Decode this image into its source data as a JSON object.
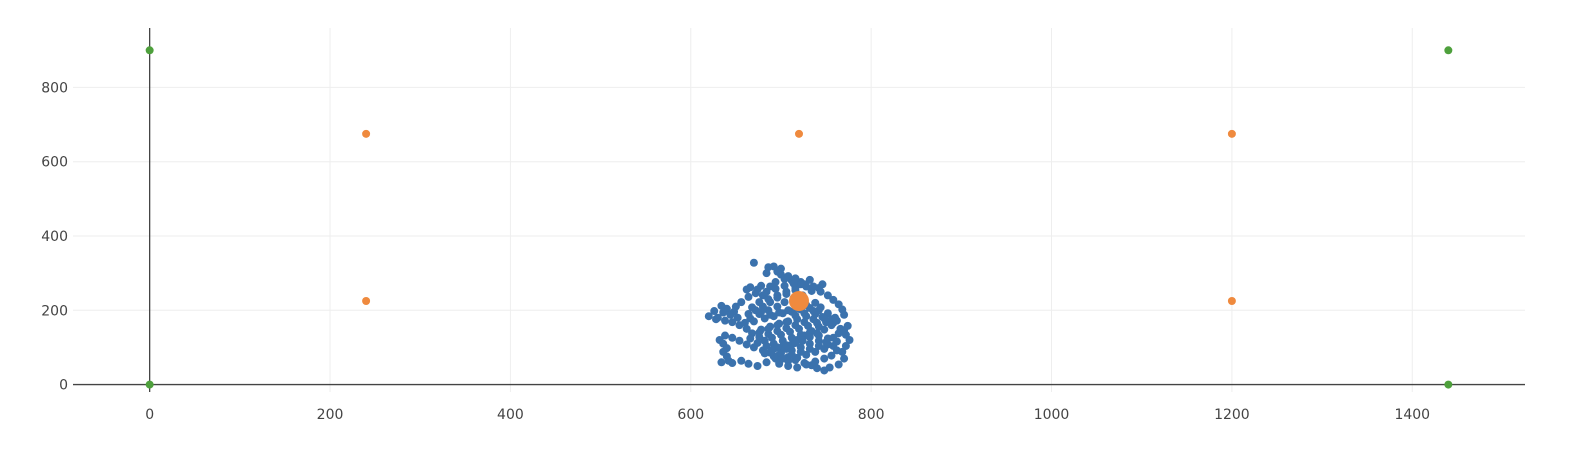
{
  "chart_data": {
    "type": "scatter",
    "title": "",
    "xlabel": "",
    "ylabel": "",
    "xlim": [
      -85,
      1525
    ],
    "ylim": [
      -20,
      960
    ],
    "grid": true,
    "x_ticks": [
      0,
      200,
      400,
      600,
      800,
      1000,
      1200,
      1400
    ],
    "y_ticks": [
      0,
      200,
      400,
      600,
      800
    ],
    "x_tick_labels": [
      "0",
      "200",
      "400",
      "600",
      "800",
      "1000",
      "1200",
      "1400"
    ],
    "y_tick_labels": [
      "0",
      "200",
      "400",
      "600",
      "800"
    ],
    "series": [
      {
        "color": "#3b72ad",
        "marker_size": "small",
        "points": [
          [
            670,
            328
          ],
          [
            686,
            316
          ],
          [
            692,
            318
          ],
          [
            684,
            300
          ],
          [
            700,
            296
          ],
          [
            704,
            284
          ],
          [
            712,
            280
          ],
          [
            722,
            276
          ],
          [
            732,
            282
          ],
          [
            746,
            270
          ],
          [
            694,
            276
          ],
          [
            688,
            264
          ],
          [
            678,
            266
          ],
          [
            662,
            256
          ],
          [
            672,
            246
          ],
          [
            680,
            240
          ],
          [
            664,
            236
          ],
          [
            656,
            222
          ],
          [
            650,
            210
          ],
          [
            648,
            196
          ],
          [
            640,
            204
          ],
          [
            634,
            212
          ],
          [
            626,
            198
          ],
          [
            620,
            184
          ],
          [
            630,
            180
          ],
          [
            638,
            172
          ],
          [
            646,
            168
          ],
          [
            654,
            160
          ],
          [
            662,
            150
          ],
          [
            666,
            178
          ],
          [
            676,
            190
          ],
          [
            686,
            200
          ],
          [
            696,
            210
          ],
          [
            704,
            222
          ],
          [
            714,
            232
          ],
          [
            724,
            240
          ],
          [
            734,
            252
          ],
          [
            742,
            260
          ],
          [
            728,
            264
          ],
          [
            716,
            254
          ],
          [
            706,
            244
          ],
          [
            696,
            234
          ],
          [
            688,
            222
          ],
          [
            680,
            210
          ],
          [
            672,
            200
          ],
          [
            664,
            190
          ],
          [
            652,
            180
          ],
          [
            644,
            188
          ],
          [
            636,
            194
          ],
          [
            628,
            176
          ],
          [
            660,
            166
          ],
          [
            670,
            170
          ],
          [
            682,
            178
          ],
          [
            692,
            184
          ],
          [
            702,
            192
          ],
          [
            712,
            196
          ],
          [
            722,
            202
          ],
          [
            732,
            206
          ],
          [
            742,
            200
          ],
          [
            752,
            192
          ],
          [
            760,
            180
          ],
          [
            758,
            166
          ],
          [
            766,
            150
          ],
          [
            772,
            134
          ],
          [
            776,
            120
          ],
          [
            772,
            104
          ],
          [
            768,
            88
          ],
          [
            770,
            70
          ],
          [
            764,
            54
          ],
          [
            754,
            46
          ],
          [
            748,
            38
          ],
          [
            740,
            44
          ],
          [
            734,
            52
          ],
          [
            726,
            58
          ],
          [
            716,
            66
          ],
          [
            708,
            74
          ],
          [
            698,
            80
          ],
          [
            688,
            86
          ],
          [
            680,
            92
          ],
          [
            670,
            100
          ],
          [
            662,
            108
          ],
          [
            654,
            118
          ],
          [
            646,
            126
          ],
          [
            638,
            132
          ],
          [
            632,
            120
          ],
          [
            636,
            110
          ],
          [
            640,
            98
          ],
          [
            636,
            88
          ],
          [
            640,
            76
          ],
          [
            642,
            64
          ],
          [
            634,
            60
          ],
          [
            646,
            58
          ],
          [
            656,
            64
          ],
          [
            664,
            56
          ],
          [
            674,
            50
          ],
          [
            684,
            60
          ],
          [
            694,
            70
          ],
          [
            700,
            84
          ],
          [
            706,
            96
          ],
          [
            712,
            108
          ],
          [
            718,
            120
          ],
          [
            726,
            132
          ],
          [
            734,
            144
          ],
          [
            742,
            156
          ],
          [
            750,
            168
          ],
          [
            756,
            176
          ],
          [
            746,
            182
          ],
          [
            736,
            176
          ],
          [
            726,
            168
          ],
          [
            716,
            160
          ],
          [
            706,
            152
          ],
          [
            696,
            144
          ],
          [
            686,
            136
          ],
          [
            676,
            128
          ],
          [
            668,
            138
          ],
          [
            678,
            148
          ],
          [
            688,
            156
          ],
          [
            698,
            164
          ],
          [
            708,
            170
          ],
          [
            718,
            176
          ],
          [
            728,
            184
          ],
          [
            738,
            190
          ],
          [
            748,
            178
          ],
          [
            740,
            166
          ],
          [
            730,
            158
          ],
          [
            720,
            150
          ],
          [
            710,
            142
          ],
          [
            700,
            134
          ],
          [
            690,
            126
          ],
          [
            682,
            118
          ],
          [
            692,
            110
          ],
          [
            702,
            118
          ],
          [
            712,
            126
          ],
          [
            722,
            134
          ],
          [
            732,
            140
          ],
          [
            742,
            132
          ],
          [
            752,
            124
          ],
          [
            762,
            116
          ],
          [
            758,
            104
          ],
          [
            748,
            96
          ],
          [
            738,
            88
          ],
          [
            728,
            80
          ],
          [
            718,
            72
          ],
          [
            708,
            64
          ],
          [
            698,
            56
          ],
          [
            708,
            50
          ],
          [
            718,
            46
          ],
          [
            728,
            54
          ],
          [
            738,
            62
          ],
          [
            748,
            70
          ],
          [
            756,
            78
          ],
          [
            762,
            92
          ],
          [
            752,
            108
          ],
          [
            742,
            118
          ],
          [
            732,
            110
          ],
          [
            722,
            100
          ],
          [
            712,
            92
          ],
          [
            702,
            102
          ],
          [
            692,
            96
          ],
          [
            684,
            104
          ],
          [
            674,
            112
          ],
          [
            666,
            124
          ],
          [
            676,
            140
          ],
          [
            686,
            150
          ],
          [
            696,
            160
          ],
          [
            706,
            168
          ],
          [
            716,
            186
          ],
          [
            726,
            192
          ],
          [
            736,
            198
          ],
          [
            744,
            208
          ],
          [
            738,
            220
          ],
          [
            728,
            214
          ],
          [
            718,
            206
          ],
          [
            708,
            200
          ],
          [
            698,
            194
          ],
          [
            688,
            188
          ],
          [
            678,
            196
          ],
          [
            668,
            208
          ],
          [
            676,
            222
          ],
          [
            686,
            230
          ],
          [
            696,
            240
          ],
          [
            706,
            250
          ],
          [
            716,
            260
          ],
          [
            722,
            270
          ],
          [
            714,
            272
          ],
          [
            704,
            266
          ],
          [
            694,
            258
          ],
          [
            684,
            250
          ],
          [
            674,
            256
          ],
          [
            666,
            262
          ],
          [
            700,
            312
          ],
          [
            696,
            304
          ],
          [
            708,
            292
          ],
          [
            716,
            286
          ],
          [
            726,
            270
          ],
          [
            736,
            264
          ],
          [
            744,
            250
          ],
          [
            752,
            240
          ],
          [
            758,
            228
          ],
          [
            764,
            216
          ],
          [
            768,
            202
          ],
          [
            770,
            188
          ],
          [
            762,
            172
          ],
          [
            756,
            160
          ],
          [
            748,
            148
          ],
          [
            740,
            138
          ],
          [
            732,
            128
          ],
          [
            724,
            118
          ],
          [
            716,
            112
          ],
          [
            706,
            106
          ],
          [
            696,
            100
          ],
          [
            690,
            92
          ],
          [
            682,
            84
          ],
          [
            692,
            76
          ],
          [
            702,
            70
          ],
          [
            712,
            80
          ],
          [
            722,
            88
          ],
          [
            732,
            96
          ],
          [
            742,
            104
          ],
          [
            750,
            114
          ],
          [
            758,
            126
          ],
          [
            764,
            138
          ],
          [
            770,
            146
          ],
          [
            774,
            158
          ]
        ]
      },
      {
        "color": "#ef8a3e",
        "marker_size": "small",
        "points": [
          [
            240,
            675
          ],
          [
            720,
            675
          ],
          [
            1200,
            675
          ],
          [
            240,
            225
          ],
          [
            1200,
            225
          ]
        ]
      },
      {
        "color": "#ef8a3e",
        "marker_size": "large",
        "points": [
          [
            720,
            225
          ]
        ]
      },
      {
        "color": "#4ea03c",
        "marker_size": "small",
        "points": [
          [
            0,
            900
          ],
          [
            1440,
            900
          ],
          [
            0,
            0
          ],
          [
            1440,
            0
          ]
        ]
      }
    ]
  }
}
